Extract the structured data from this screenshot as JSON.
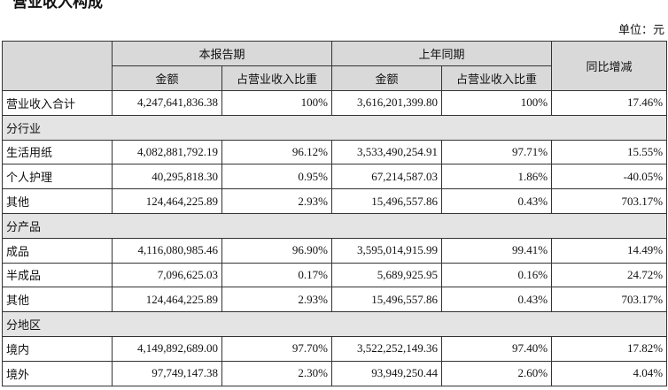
{
  "title": "营业收入构成",
  "unit": "单位：元",
  "table": {
    "header": {
      "current": "本报告期",
      "prior": "上年同期",
      "yoy": "同比增减",
      "amount": "金额",
      "ratio": "占营业收入比重"
    },
    "rows": [
      {
        "label": "营业收入合计",
        "cells": [
          "4,247,641,836.38",
          "100%",
          "3,616,201,399.80",
          "100%",
          "17.46%"
        ]
      },
      {
        "label": "分行业"
      },
      {
        "label": "生活用纸",
        "cells": [
          "4,082,881,792.19",
          "96.12%",
          "3,533,490,254.91",
          "97.71%",
          "15.55%"
        ]
      },
      {
        "label": "个人护理",
        "cells": [
          "40,295,818.30",
          "0.95%",
          "67,214,587.03",
          "1.86%",
          "-40.05%"
        ]
      },
      {
        "label": "其他",
        "cells": [
          "124,464,225.89",
          "2.93%",
          "15,496,557.86",
          "0.43%",
          "703.17%"
        ]
      },
      {
        "label": "分产品"
      },
      {
        "label": "成品",
        "cells": [
          "4,116,080,985.46",
          "96.90%",
          "3,595,014,915.99",
          "99.41%",
          "14.49%"
        ]
      },
      {
        "label": "半成品",
        "cells": [
          "7,096,625.03",
          "0.17%",
          "5,689,925.95",
          "0.16%",
          "24.72%"
        ]
      },
      {
        "label": "其他",
        "cells": [
          "124,464,225.89",
          "2.93%",
          "15,496,557.86",
          "0.43%",
          "703.17%"
        ]
      },
      {
        "label": "分地区"
      },
      {
        "label": "境内",
        "cells": [
          "4,149,892,689.00",
          "97.70%",
          "3,522,252,149.36",
          "97.40%",
          "17.82%"
        ]
      },
      {
        "label": "境外",
        "cells": [
          "97,749,147.38",
          "2.30%",
          "93,949,250.44",
          "2.60%",
          "4.04%"
        ]
      }
    ]
  }
}
